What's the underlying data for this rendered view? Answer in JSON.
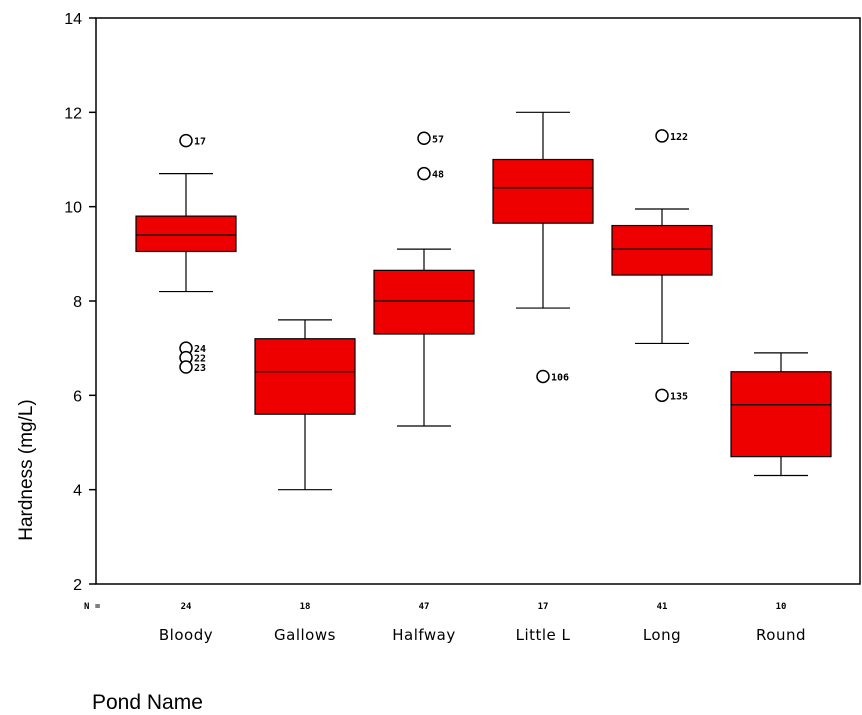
{
  "chart_data": {
    "type": "boxplot",
    "ylabel": "Hardness (mg/L)",
    "xlabel": "Pond Name",
    "ylim": [
      2,
      14
    ],
    "yticks": [
      2,
      4,
      6,
      8,
      10,
      12,
      14
    ],
    "n_prefix": "N =",
    "box_color": "#ee0000",
    "categories": [
      "Bloody",
      "Gallows",
      "Halfway",
      "Little L",
      "Long",
      "Round"
    ],
    "n": [
      "24",
      "18",
      "47",
      "17",
      "41",
      "10"
    ],
    "boxes": [
      {
        "category": "Bloody",
        "whisker_low": 8.2,
        "q1": 9.05,
        "median": 9.4,
        "q3": 9.8,
        "whisker_high": 10.7,
        "outliers": [
          {
            "value": 11.4,
            "label": "17"
          },
          {
            "value": 7.0,
            "label": "24"
          },
          {
            "value": 6.8,
            "label": "22"
          },
          {
            "value": 6.6,
            "label": "23"
          }
        ]
      },
      {
        "category": "Gallows",
        "whisker_low": 4.0,
        "q1": 5.6,
        "median": 6.5,
        "q3": 7.2,
        "whisker_high": 7.6,
        "outliers": []
      },
      {
        "category": "Halfway",
        "whisker_low": 5.35,
        "q1": 7.3,
        "median": 8.0,
        "q3": 8.65,
        "whisker_high": 9.1,
        "outliers": [
          {
            "value": 11.45,
            "label": "57"
          },
          {
            "value": 10.7,
            "label": "48"
          }
        ]
      },
      {
        "category": "Little L",
        "whisker_low": 7.85,
        "q1": 9.65,
        "median": 10.4,
        "q3": 11.0,
        "whisker_high": 12.0,
        "outliers": [
          {
            "value": 6.4,
            "label": "106"
          }
        ]
      },
      {
        "category": "Long",
        "whisker_low": 7.1,
        "q1": 8.55,
        "median": 9.1,
        "q3": 9.6,
        "whisker_high": 9.95,
        "outliers": [
          {
            "value": 11.5,
            "label": "122"
          },
          {
            "value": 6.0,
            "label": "135"
          }
        ]
      },
      {
        "category": "Round",
        "whisker_low": 4.3,
        "q1": 4.7,
        "median": 5.8,
        "q3": 6.5,
        "whisker_high": 6.9,
        "outliers": []
      }
    ]
  }
}
